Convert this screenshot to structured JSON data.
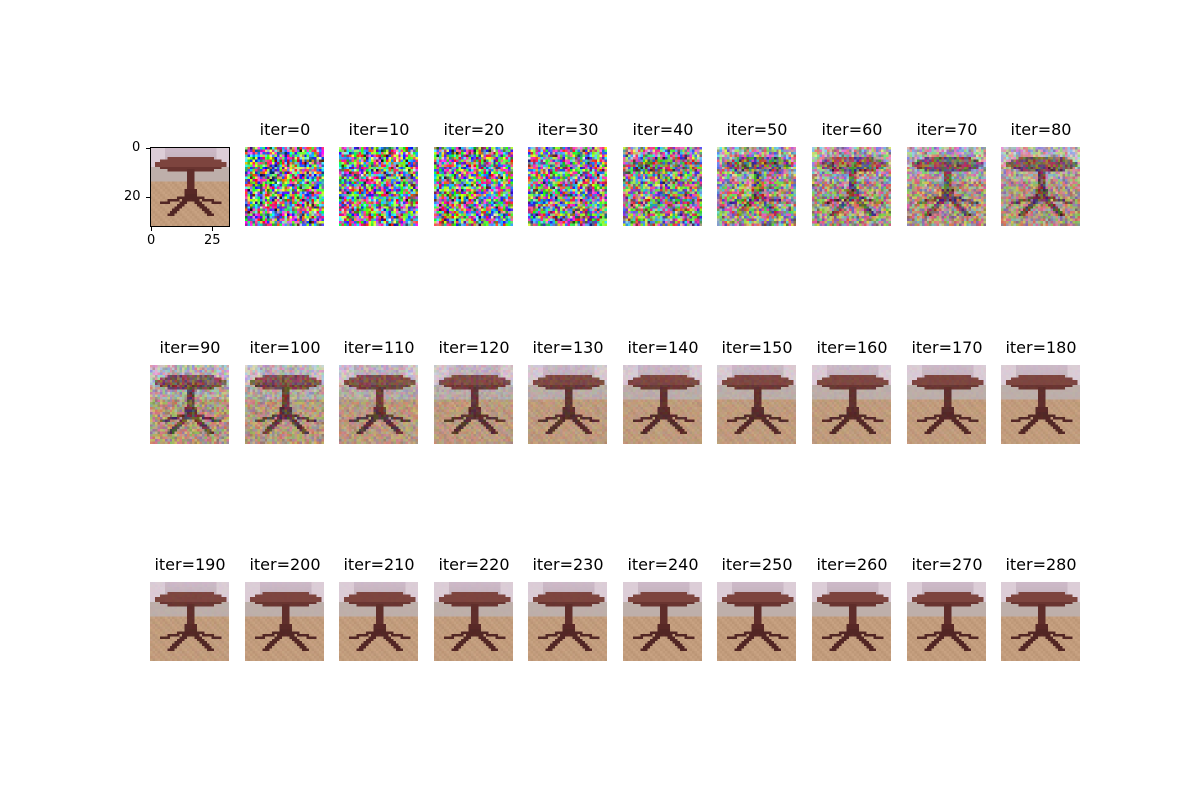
{
  "reference": {
    "y_ticks": [
      "0",
      "20"
    ],
    "x_ticks": [
      "0",
      "25"
    ]
  },
  "iterations": [
    {
      "label": "iter=0",
      "noise": 1.0
    },
    {
      "label": "iter=10",
      "noise": 1.0
    },
    {
      "label": "iter=20",
      "noise": 0.98
    },
    {
      "label": "iter=30",
      "noise": 0.92
    },
    {
      "label": "iter=40",
      "noise": 0.78
    },
    {
      "label": "iter=50",
      "noise": 0.62
    },
    {
      "label": "iter=60",
      "noise": 0.5
    },
    {
      "label": "iter=70",
      "noise": 0.42
    },
    {
      "label": "iter=80",
      "noise": 0.36
    },
    {
      "label": "iter=90",
      "noise": 0.3
    },
    {
      "label": "iter=100",
      "noise": 0.24
    },
    {
      "label": "iter=110",
      "noise": 0.18
    },
    {
      "label": "iter=120",
      "noise": 0.12
    },
    {
      "label": "iter=130",
      "noise": 0.08
    },
    {
      "label": "iter=140",
      "noise": 0.06
    },
    {
      "label": "iter=150",
      "noise": 0.05
    },
    {
      "label": "iter=160",
      "noise": 0.04
    },
    {
      "label": "iter=170",
      "noise": 0.03
    },
    {
      "label": "iter=180",
      "noise": 0.02
    },
    {
      "label": "iter=190",
      "noise": 0.02
    },
    {
      "label": "iter=200",
      "noise": 0.01
    },
    {
      "label": "iter=210",
      "noise": 0.01
    },
    {
      "label": "iter=220",
      "noise": 0.01
    },
    {
      "label": "iter=230",
      "noise": 0.01
    },
    {
      "label": "iter=240",
      "noise": 0.0
    },
    {
      "label": "iter=250",
      "noise": 0.0
    },
    {
      "label": "iter=260",
      "noise": 0.0
    },
    {
      "label": "iter=270",
      "noise": 0.0
    },
    {
      "label": "iter=280",
      "noise": 0.0
    }
  ]
}
